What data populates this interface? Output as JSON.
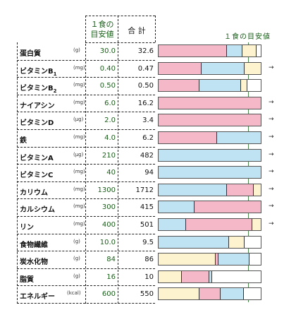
{
  "header": {
    "guide_label_1": "１食の",
    "guide_label_2": "目安値",
    "total_label": "合 計",
    "target_label": "１食の目安値"
  },
  "colors": {
    "pink": "#f5b8c8",
    "blue": "#bfe3f2",
    "cream": "#fdf3cf"
  },
  "arrow_glyph": "→",
  "rows": [
    {
      "name": "蛋白質",
      "sub": "",
      "unit": "(g)",
      "guide": "30.0",
      "total": "32.6",
      "arrow": false,
      "segments": [
        {
          "color": "pink",
          "share": 0.67
        },
        {
          "color": "blue",
          "share": 0.15
        },
        {
          "color": "cream",
          "share": 0.14
        }
      ]
    },
    {
      "name": "ビタミンB",
      "sub": "1",
      "unit": "(mg)",
      "guide": "0.40",
      "total": "0.47",
      "arrow": true,
      "segments": [
        {
          "color": "pink",
          "share": 0.42
        },
        {
          "color": "blue",
          "share": 0.42
        },
        {
          "color": "cream",
          "share": 0.16
        }
      ]
    },
    {
      "name": "ビタミンB",
      "sub": "2",
      "unit": "(mg)",
      "guide": "0.50",
      "total": "0.50",
      "arrow": false,
      "segments": [
        {
          "color": "pink",
          "share": 0.4
        },
        {
          "color": "blue",
          "share": 0.41
        },
        {
          "color": "cream",
          "share": 0.06
        }
      ]
    },
    {
      "name": "ナイアシン",
      "sub": "",
      "unit": "(mg)",
      "guide": "6.0",
      "total": "16.2",
      "arrow": true,
      "segments": [
        {
          "color": "pink",
          "share": 1.0
        }
      ]
    },
    {
      "name": "ビタミンD",
      "sub": "",
      "unit": "(μg)",
      "guide": "2.0",
      "total": "3.4",
      "arrow": true,
      "segments": [
        {
          "color": "pink",
          "share": 1.0
        }
      ]
    },
    {
      "name": "鉄",
      "sub": "",
      "unit": "(mg)",
      "guide": "4.0",
      "total": "6.2",
      "arrow": true,
      "segments": [
        {
          "color": "pink",
          "share": 0.57
        },
        {
          "color": "blue",
          "share": 0.43
        }
      ]
    },
    {
      "name": "ビタミンA",
      "sub": "",
      "unit": "(μg)",
      "guide": "210",
      "total": "482",
      "arrow": true,
      "segments": [
        {
          "color": "blue",
          "share": 1.0
        }
      ]
    },
    {
      "name": "ビタミンC",
      "sub": "",
      "unit": "(mg)",
      "guide": "40",
      "total": "94",
      "arrow": true,
      "segments": [
        {
          "color": "blue",
          "share": 1.0
        }
      ]
    },
    {
      "name": "カリウム",
      "sub": "",
      "unit": "(mg)",
      "guide": "1300",
      "total": "1712",
      "arrow": true,
      "segments": [
        {
          "color": "blue",
          "share": 0.67
        },
        {
          "color": "pink",
          "share": 0.26
        },
        {
          "color": "cream",
          "share": 0.07
        }
      ]
    },
    {
      "name": "カルシウム",
      "sub": "",
      "unit": "(mg)",
      "guide": "300",
      "total": "415",
      "arrow": true,
      "segments": [
        {
          "color": "blue",
          "share": 0.35
        },
        {
          "color": "pink",
          "share": 0.65
        }
      ]
    },
    {
      "name": "リン",
      "sub": "",
      "unit": "(mg)",
      "guide": "400",
      "total": "501",
      "arrow": true,
      "segments": [
        {
          "color": "blue",
          "share": 0.27
        },
        {
          "color": "pink",
          "share": 0.65
        },
        {
          "color": "cream",
          "share": 0.08
        }
      ]
    },
    {
      "name": "食物繊維",
      "sub": "",
      "unit": "(g)",
      "guide": "10.0",
      "total": "9.5",
      "arrow": false,
      "segments": [
        {
          "color": "blue",
          "share": 0.69
        },
        {
          "color": "cream",
          "share": 0.15
        }
      ]
    },
    {
      "name": "炭水化物",
      "sub": "",
      "unit": "(g)",
      "guide": "84",
      "total": "86",
      "arrow": false,
      "segments": [
        {
          "color": "cream",
          "share": 0.56
        },
        {
          "color": "pink",
          "share": 0.03
        },
        {
          "color": "blue",
          "share": 0.3
        }
      ]
    },
    {
      "name": "脂質",
      "sub": "",
      "unit": "(g)",
      "guide": "16",
      "total": "10",
      "arrow": false,
      "segments": [
        {
          "color": "cream",
          "share": 0.23
        },
        {
          "color": "pink",
          "share": 0.27
        },
        {
          "color": "blue",
          "share": 0.03
        }
      ]
    },
    {
      "name": "エネルギー",
      "sub": "",
      "unit": "(kcal)",
      "guide": "600",
      "total": "550",
      "arrow": false,
      "segments": [
        {
          "color": "cream",
          "share": 0.4
        },
        {
          "color": "pink",
          "share": 0.21
        },
        {
          "color": "blue",
          "share": 0.23
        }
      ]
    }
  ]
}
